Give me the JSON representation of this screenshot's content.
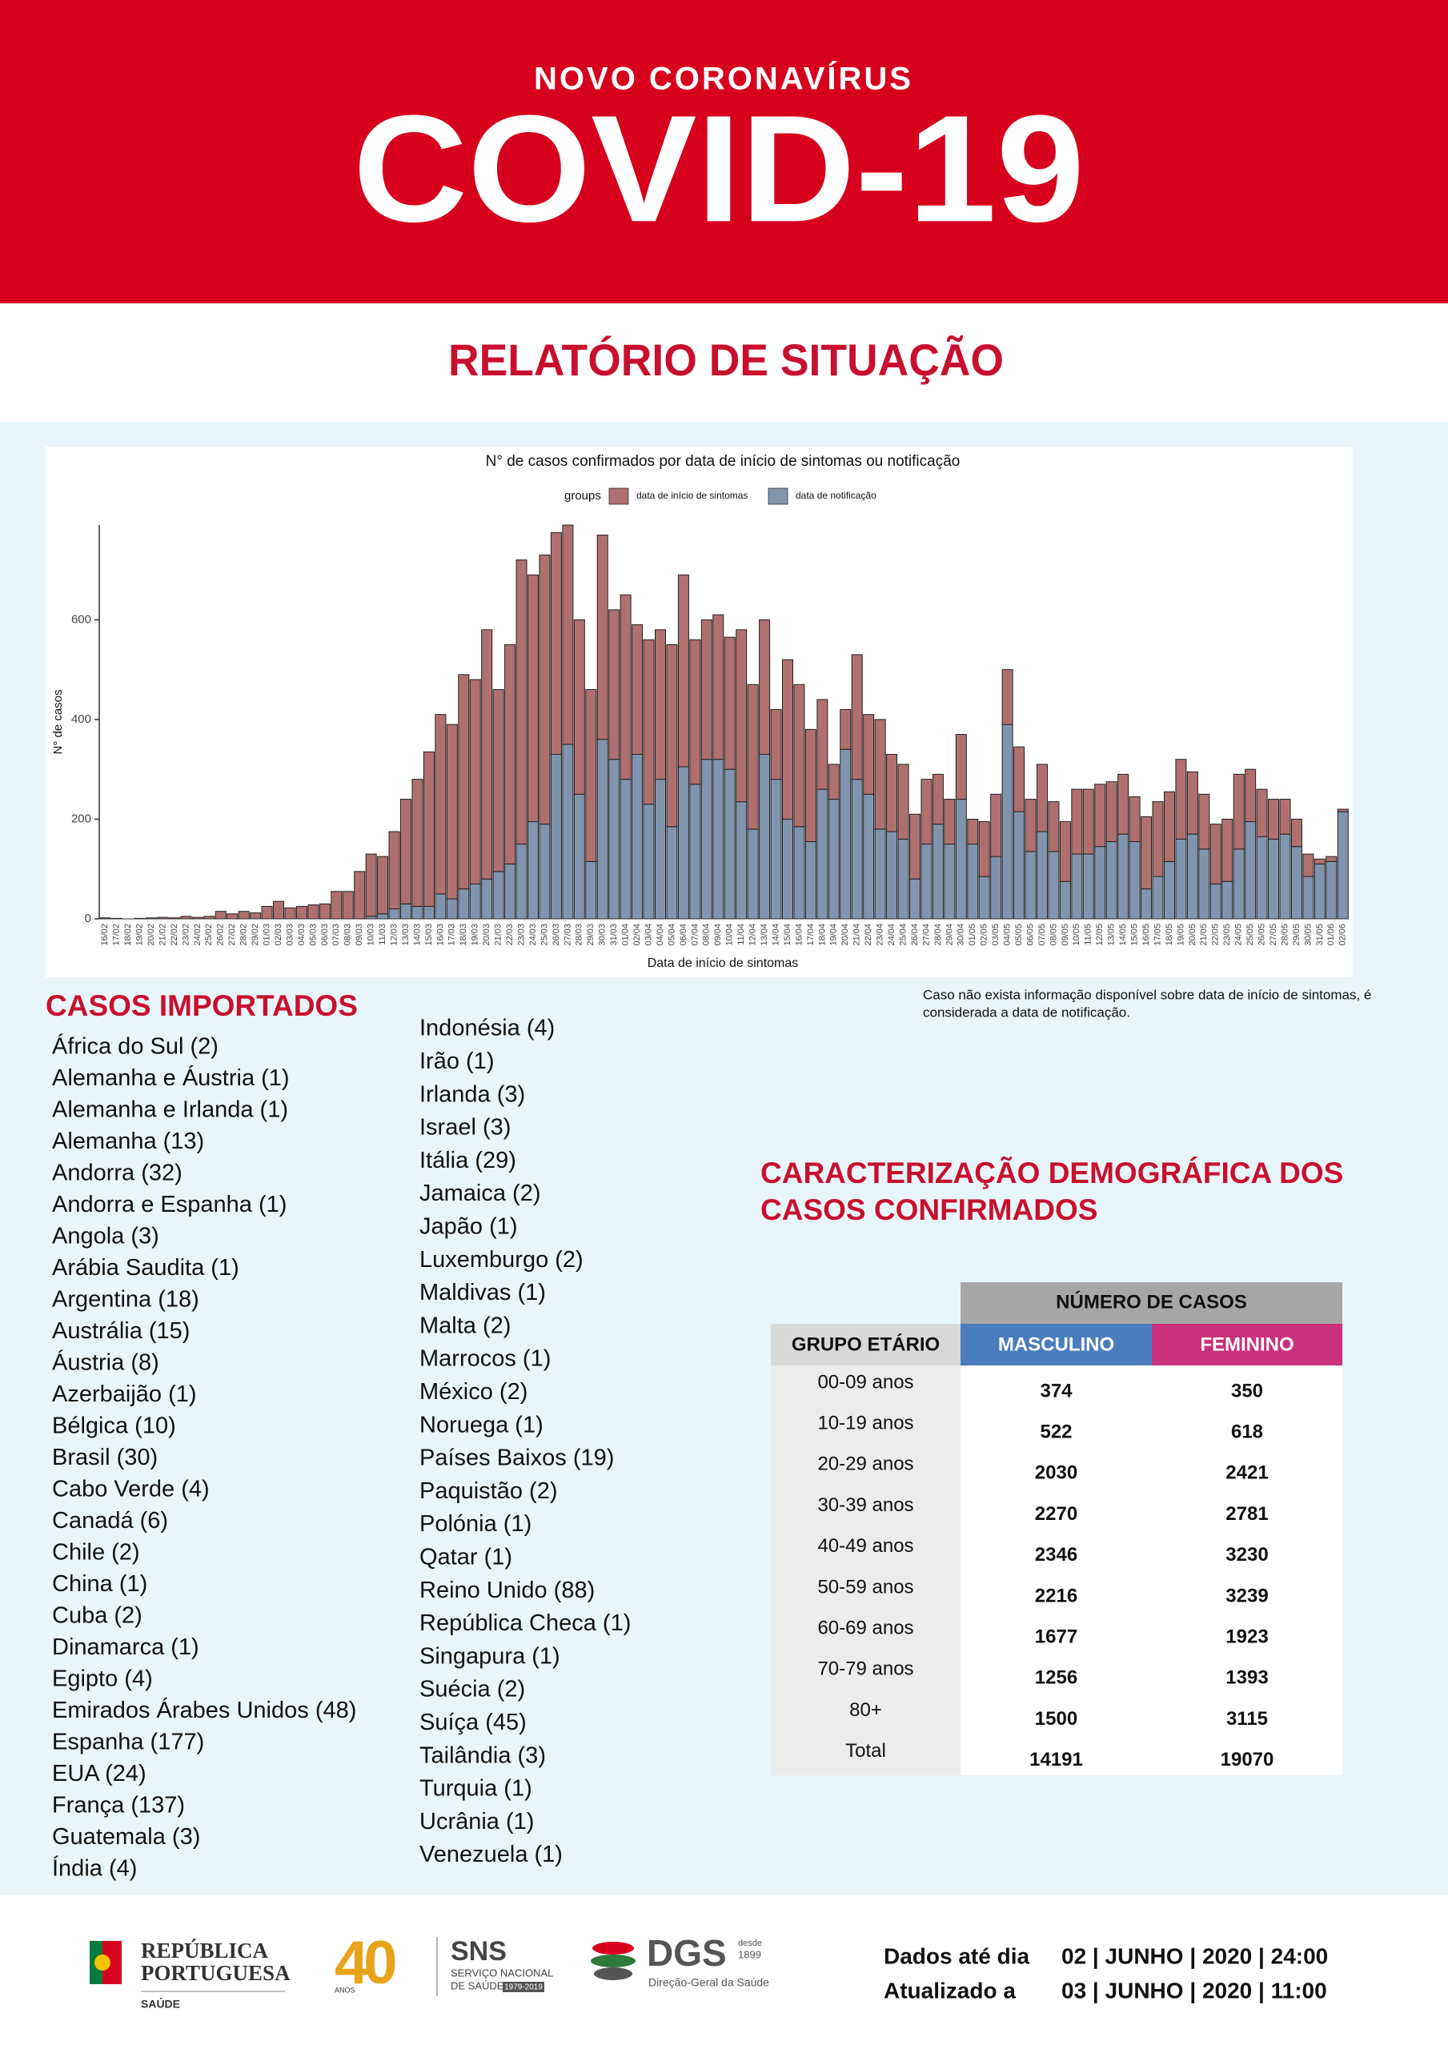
{
  "header": {
    "kicker": "NOVO CORONAVÍRUS",
    "title": "COVID-19",
    "subtitle": "RELATÓRIO DE SITUAÇÃO"
  },
  "chart_data": {
    "type": "bar",
    "stacked": true,
    "title": "N° de casos confirmados por data de início de sintomas ou notificação",
    "legend_title": "groups",
    "x_label": "Data de início de sintomas",
    "y_label": "N° de casos",
    "ylim": [
      0,
      790
    ],
    "yticks": [
      0,
      200,
      400,
      600
    ],
    "grid": false,
    "categories": [
      "16/02",
      "17/02",
      "18/02",
      "19/02",
      "20/02",
      "21/02",
      "22/02",
      "23/02",
      "24/02",
      "25/02",
      "26/02",
      "27/02",
      "28/02",
      "29/02",
      "01/03",
      "02/03",
      "03/03",
      "04/03",
      "05/03",
      "06/03",
      "07/03",
      "08/03",
      "09/03",
      "10/03",
      "11/03",
      "12/03",
      "13/03",
      "14/03",
      "15/03",
      "16/03",
      "17/03",
      "18/03",
      "19/03",
      "20/03",
      "21/03",
      "22/03",
      "23/03",
      "24/03",
      "25/03",
      "26/03",
      "27/03",
      "28/03",
      "29/03",
      "30/03",
      "31/03",
      "01/04",
      "02/04",
      "03/04",
      "04/04",
      "05/04",
      "06/04",
      "07/04",
      "08/04",
      "09/04",
      "10/04",
      "11/04",
      "12/04",
      "13/04",
      "14/04",
      "15/04",
      "16/04",
      "17/04",
      "18/04",
      "19/04",
      "20/04",
      "21/04",
      "22/04",
      "23/04",
      "24/04",
      "25/04",
      "26/04",
      "27/04",
      "28/04",
      "29/04",
      "30/04",
      "01/05",
      "02/05",
      "03/05",
      "04/05",
      "05/05",
      "06/05",
      "07/05",
      "08/05",
      "09/05",
      "10/05",
      "11/05",
      "12/05",
      "13/05",
      "14/05",
      "15/05",
      "16/05",
      "17/05",
      "18/05",
      "19/05",
      "20/05",
      "21/05",
      "22/05",
      "23/05",
      "24/05",
      "25/05",
      "26/05",
      "27/05",
      "28/05",
      "29/05",
      "30/05",
      "31/05",
      "01/06",
      "02/06"
    ],
    "series": [
      {
        "name": "data de início de sintomas",
        "color": "#b07070",
        "values": [
          2,
          1,
          0,
          1,
          2,
          3,
          2,
          5,
          3,
          5,
          15,
          10,
          15,
          12,
          25,
          35,
          22,
          25,
          28,
          30,
          55,
          55,
          95,
          125,
          115,
          155,
          210,
          255,
          310,
          360,
          350,
          430,
          410,
          500,
          365,
          440,
          570,
          495,
          540,
          445,
          440,
          350,
          345,
          410,
          300,
          370,
          260,
          330,
          300,
          365,
          385,
          290,
          280,
          290,
          265,
          345,
          290,
          270,
          140,
          320,
          285,
          225,
          180,
          70,
          80,
          250,
          160,
          220,
          155,
          150,
          130,
          130,
          100,
          90,
          130,
          50,
          110,
          125,
          110,
          130,
          105,
          135,
          100,
          120,
          130,
          130,
          125,
          120,
          120,
          90,
          145,
          150,
          140,
          160,
          125,
          110,
          120,
          125,
          150,
          105,
          95,
          80,
          70,
          55,
          45,
          10,
          10,
          5
        ]
      },
      {
        "name": "data de notificação",
        "color": "#8094ad",
        "values": [
          0,
          0,
          0,
          0,
          0,
          0,
          0,
          0,
          0,
          0,
          0,
          0,
          0,
          0,
          0,
          0,
          0,
          0,
          0,
          0,
          0,
          0,
          0,
          5,
          10,
          20,
          30,
          25,
          25,
          50,
          40,
          60,
          70,
          80,
          95,
          110,
          150,
          195,
          190,
          330,
          350,
          250,
          115,
          360,
          320,
          280,
          330,
          230,
          280,
          185,
          305,
          270,
          320,
          320,
          300,
          235,
          180,
          330,
          280,
          200,
          185,
          155,
          260,
          240,
          340,
          280,
          250,
          180,
          175,
          160,
          80,
          150,
          190,
          150,
          240,
          150,
          85,
          125,
          390,
          215,
          135,
          175,
          135,
          75,
          130,
          130,
          145,
          155,
          170,
          155,
          60,
          85,
          115,
          160,
          170,
          140,
          70,
          75,
          140,
          195,
          165,
          160,
          170,
          145,
          85,
          110,
          115,
          215
        ]
      }
    ]
  },
  "note": [
    "Caso não exista informação disponível sobre data de início de sintomas, é",
    "considerada a data de notificação."
  ],
  "imported": {
    "title": "CASOS IMPORTADOS",
    "columns": [
      [
        "África do Sul (2)",
        "Alemanha e Áustria (1)",
        "Alemanha e Irlanda (1)",
        "Alemanha (13)",
        "Andorra (32)",
        "Andorra e Espanha (1)",
        "Angola (3)",
        "Arábia Saudita (1)",
        "Argentina (18)",
        "Austrália (15)",
        "Áustria (8)",
        "Azerbaijão (1)",
        "Bélgica (10)",
        "Brasil (30)",
        "Cabo Verde (4)",
        "Canadá (6)",
        "Chile (2)",
        "China (1)",
        "Cuba (2)",
        "Dinamarca (1)",
        "Egipto (4)",
        "Emirados Árabes Unidos (48)",
        "Espanha (177)",
        "EUA (24)",
        "França (137)",
        "Guatemala (3)",
        "Índia (4)"
      ],
      [
        "Indonésia (4)",
        "Irão (1)",
        "Irlanda (3)",
        "Israel (3)",
        "Itália (29)",
        "Jamaica (2)",
        "Japão (1)",
        "Luxemburgo (2)",
        "Maldivas (1)",
        "Malta (2)",
        "Marrocos (1)",
        "México (2)",
        "Noruega (1)",
        "Países Baixos (19)",
        "Paquistão (2)",
        "Polónia (1)",
        "Qatar (1)",
        "Reino Unido (88)",
        "República Checa (1)",
        "Singapura (1)",
        "Suécia (2)",
        "Suíça (45)",
        "Tailândia (3)",
        "Turquia (1)",
        "Ucrânia (1)",
        "Venezuela (1)"
      ]
    ]
  },
  "demographics": {
    "title": [
      "CARACTERIZAÇÃO DEMOGRÁFICA DOS",
      "CASOS CONFIRMADOS"
    ],
    "table": {
      "group_header": "NÚMERO DE CASOS",
      "columns": [
        "GRUPO ETÁRIO",
        "MASCULINO",
        "FEMININO"
      ],
      "rows": [
        [
          "00-09 anos",
          374,
          350
        ],
        [
          "10-19 anos",
          522,
          618
        ],
        [
          "20-29 anos",
          2030,
          2421
        ],
        [
          "30-39 anos",
          2270,
          2781
        ],
        [
          "40-49 anos",
          2346,
          3230
        ],
        [
          "50-59 anos",
          2216,
          3239
        ],
        [
          "60-69 anos",
          1677,
          1923
        ],
        [
          "70-79 anos",
          1256,
          1393
        ],
        [
          "80+",
          1500,
          3115
        ],
        [
          "Total",
          14191,
          19070
        ]
      ]
    }
  },
  "footer": {
    "logos": {
      "republica": [
        "REPÚBLICA",
        "PORTUGUESA",
        "SAÚDE"
      ],
      "sns": {
        "years": "40",
        "anos": "ANOS",
        "name": "SNS",
        "line1": "SERVIÇO NACIONAL",
        "line2": "DE SAÚDE",
        "period": "1979-2019"
      },
      "dgs": {
        "name": "DGS",
        "since": "desde",
        "year": "1899",
        "full": "Direção-Geral da Saúde"
      }
    },
    "dates": [
      {
        "label": "Dados até dia",
        "value": "02 | JUNHO | 2020 | 24:00"
      },
      {
        "label": "Atualizado a",
        "value": "03 | JUNHO | 2020 | 11:00"
      }
    ]
  }
}
